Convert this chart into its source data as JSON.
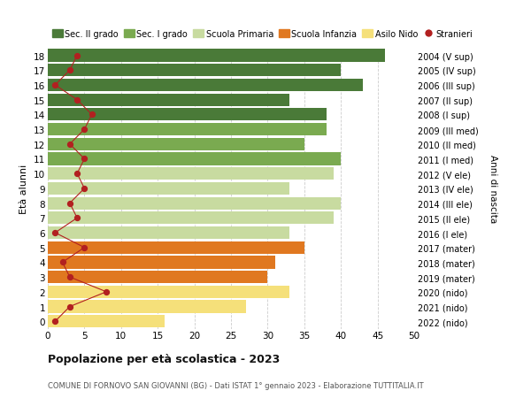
{
  "ages": [
    0,
    1,
    2,
    3,
    4,
    5,
    6,
    7,
    8,
    9,
    10,
    11,
    12,
    13,
    14,
    15,
    16,
    17,
    18
  ],
  "bar_values": [
    16,
    27,
    33,
    30,
    31,
    35,
    33,
    39,
    40,
    33,
    39,
    40,
    35,
    38,
    38,
    33,
    43,
    40,
    46
  ],
  "stranieri": [
    1,
    3,
    8,
    3,
    2,
    5,
    1,
    4,
    3,
    5,
    4,
    5,
    3,
    5,
    6,
    4,
    1,
    3,
    4
  ],
  "right_labels": [
    "2022 (nido)",
    "2021 (nido)",
    "2020 (nido)",
    "2019 (mater)",
    "2018 (mater)",
    "2017 (mater)",
    "2016 (I ele)",
    "2015 (II ele)",
    "2014 (III ele)",
    "2013 (IV ele)",
    "2012 (V ele)",
    "2011 (I med)",
    "2010 (II med)",
    "2009 (III med)",
    "2008 (I sup)",
    "2007 (II sup)",
    "2006 (III sup)",
    "2005 (IV sup)",
    "2004 (V sup)"
  ],
  "bar_colors": [
    "#f5e07a",
    "#f5e07a",
    "#f5e07a",
    "#e07820",
    "#e07820",
    "#e07820",
    "#c8dba0",
    "#c8dba0",
    "#c8dba0",
    "#c8dba0",
    "#c8dba0",
    "#7aaa50",
    "#7aaa50",
    "#7aaa50",
    "#4a7a38",
    "#4a7a38",
    "#4a7a38",
    "#4a7a38",
    "#4a7a38"
  ],
  "legend_labels": [
    "Sec. II grado",
    "Sec. I grado",
    "Scuola Primaria",
    "Scuola Infanzia",
    "Asilo Nido",
    "Stranieri"
  ],
  "legend_colors": [
    "#4a7a38",
    "#7aaa50",
    "#c8dba0",
    "#e07820",
    "#f5e07a",
    "#b22020"
  ],
  "stranieri_color": "#b22020",
  "stranieri_line_color": "#b22020",
  "ylabel": "Età alunni",
  "right_ylabel": "Anni di nascita",
  "title": "Popolazione per età scolastica - 2023",
  "subtitle": "COMUNE DI FORNOVO SAN GIOVANNI (BG) - Dati ISTAT 1° gennaio 2023 - Elaborazione TUTTITALIA.IT",
  "xlim": [
    0,
    50
  ],
  "xticks": [
    0,
    5,
    10,
    15,
    20,
    25,
    30,
    35,
    40,
    45,
    50
  ],
  "bg_color": "#ffffff",
  "grid_color": "#cccccc"
}
